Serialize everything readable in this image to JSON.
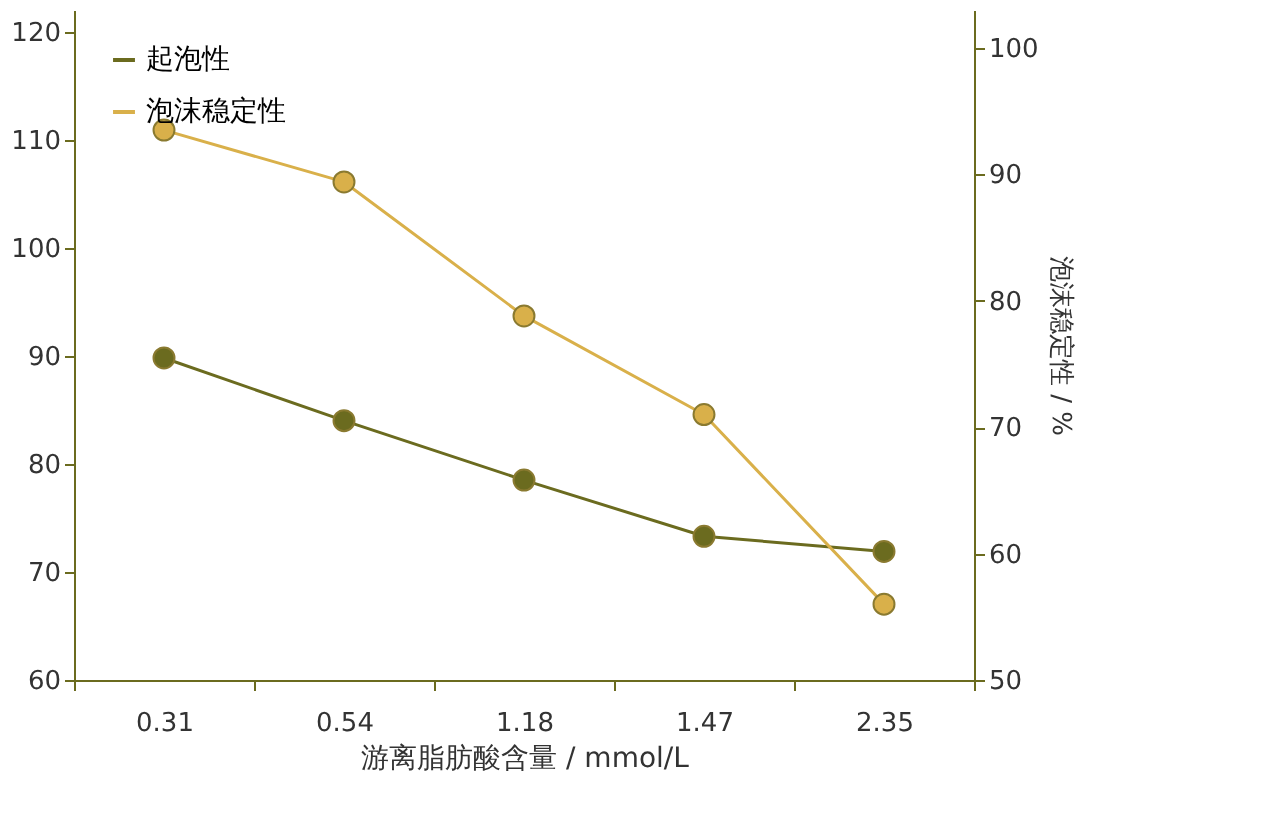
{
  "chart_data": {
    "type": "line",
    "xlabel": "游离脂肪酸含量 / mmol/L",
    "y2label": "泡沫稳定性 / %",
    "categories": [
      "0.31",
      "0.54",
      "1.18",
      "1.47",
      "2.35"
    ],
    "series": [
      {
        "name": "起泡性",
        "color": "#6b6b1f",
        "values": [
          89.8,
          84,
          78.5,
          73.3,
          71.9
        ]
      },
      {
        "name": "泡沫稳定性",
        "color": "#d9b04a",
        "values": [
          93.5,
          89.4,
          78.8,
          71,
          56
        ],
        "axis": "y2"
      }
    ],
    "ylim": [
      60,
      122
    ],
    "yticks": [
      60,
      70,
      80,
      90,
      100,
      110,
      120
    ],
    "y2lim": [
      50,
      103
    ],
    "y2ticks": [
      50,
      60,
      70,
      80,
      90,
      100
    ],
    "grid": false,
    "legend": "top left",
    "marker": "circle",
    "line_style": "solid"
  }
}
